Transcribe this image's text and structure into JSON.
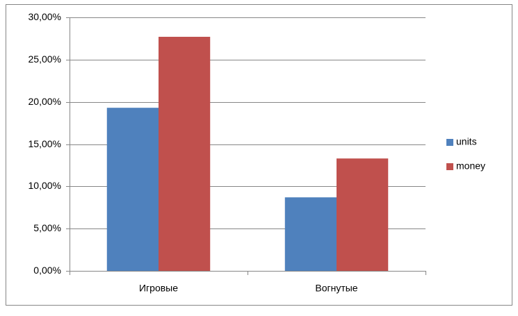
{
  "chart_data": {
    "type": "bar",
    "categories": [
      "Игровые",
      "Вогнутые"
    ],
    "series": [
      {
        "name": "units",
        "color": "#4f81bd",
        "values": [
          19.3,
          8.7
        ]
      },
      {
        "name": "money",
        "color": "#c0504d",
        "values": [
          27.7,
          13.3
        ]
      }
    ],
    "ylim": [
      0,
      30
    ],
    "yticks": [
      {
        "value": 0,
        "label": "0,00%"
      },
      {
        "value": 5,
        "label": "5,00%"
      },
      {
        "value": 10,
        "label": "10,00%"
      },
      {
        "value": 15,
        "label": "15,00%"
      },
      {
        "value": 20,
        "label": "20,00%"
      },
      {
        "value": 25,
        "label": "25,00%"
      },
      {
        "value": 30,
        "label": "30,00%"
      }
    ],
    "grid": true,
    "legend": "right"
  }
}
